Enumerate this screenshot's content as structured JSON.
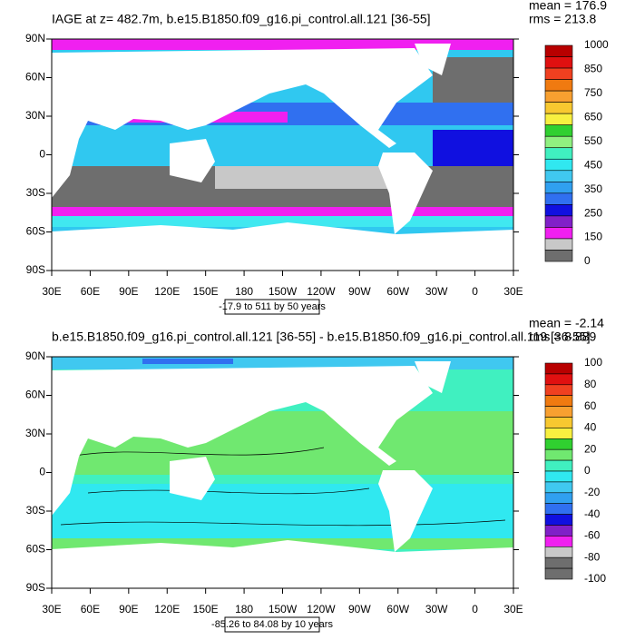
{
  "panels": [
    {
      "title": "IAGE at z= 482.7m, b.e15.B1850.f09_g16.pi_control.all.121 [36-55]",
      "stats": [
        "mean = 176.9",
        "rms = 213.8"
      ],
      "lat_labels": [
        "90N",
        "60N",
        "30N",
        "0",
        "30S",
        "60S",
        "90S"
      ],
      "lon_labels": [
        "30E",
        "60E",
        "90E",
        "120E",
        "150E",
        "180",
        "150W",
        "120W",
        "90W",
        "60W",
        "30W",
        "0",
        "30E"
      ],
      "range_label": "-17.9 to 511 by 50 years",
      "colorbar": {
        "labels": [
          "1000",
          "850",
          "750",
          "650",
          "550",
          "450",
          "350",
          "250",
          "150",
          "0"
        ],
        "colors": [
          "#b80000",
          "#e01010",
          "#f04020",
          "#f07a10",
          "#f8a030",
          "#f8c830",
          "#f8f040",
          "#30d030",
          "#90f080",
          "#40f0c0",
          "#30e8f0",
          "#40c8f0",
          "#30a0f0",
          "#3070f0",
          "#1010e0",
          "#8020c8",
          "#f020f0",
          "#c8c8c8",
          "#6e6e6e"
        ]
      }
    },
    {
      "title": "b.e15.B1850.f09_g16.pi_control.all.121 [36-55] - b.e15.B1850.f09_g16.pi_control.all.119 [36-55]",
      "stats": [
        "mean = -2.14",
        "rms = 8.889"
      ],
      "lat_labels": [
        "90N",
        "60N",
        "30N",
        "0",
        "30S",
        "60S",
        "90S"
      ],
      "lon_labels": [
        "30E",
        "60E",
        "90E",
        "120E",
        "150E",
        "180",
        "150W",
        "120W",
        "90W",
        "60W",
        "30W",
        "0",
        "30E"
      ],
      "range_label": "-85.26 to 84.08 by 10 years",
      "colorbar": {
        "labels": [
          "100",
          "80",
          "60",
          "40",
          "20",
          "0",
          "-20",
          "-40",
          "-60",
          "-80",
          "-100"
        ],
        "colors": [
          "#b80000",
          "#e01010",
          "#f04020",
          "#f07a10",
          "#f8a030",
          "#f8c830",
          "#f8f040",
          "#30d030",
          "#70e870",
          "#40f0c0",
          "#30e8f0",
          "#40c8f0",
          "#30a0f0",
          "#3070f0",
          "#1010e0",
          "#8020c8",
          "#f020f0",
          "#c8c8c8",
          "#6e6e6e",
          "#6e6e6e"
        ]
      }
    }
  ]
}
